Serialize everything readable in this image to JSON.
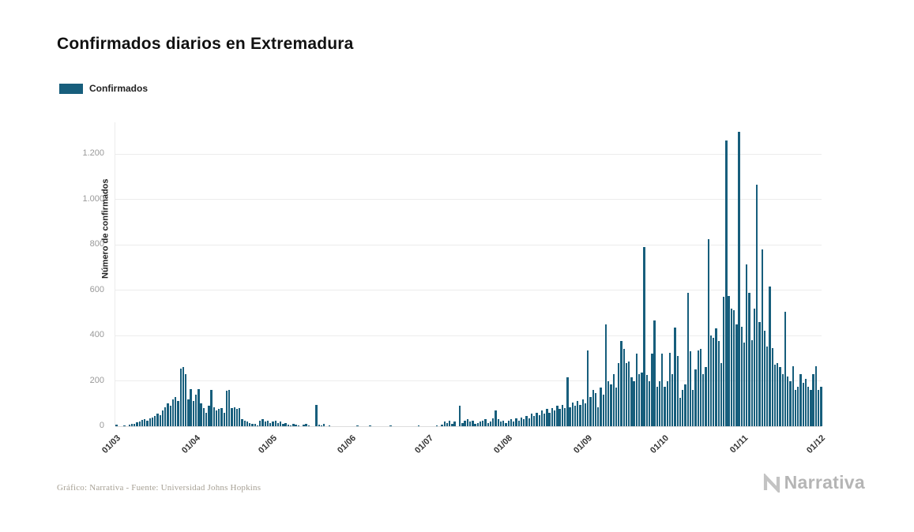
{
  "title": "Confirmados diarios en Extremadura",
  "legend": {
    "label": "Confirmados"
  },
  "footer": {
    "credit": "Gráfico: Narrativa - Fuente: Universidad Johns Hopkins",
    "brand": "Narrativa"
  },
  "colors": {
    "bar": "#175e7c",
    "grid": "#ececec",
    "ytick_text": "#999999",
    "xtick_text": "#333333",
    "brand_gray": "#b5b5b5"
  },
  "chart_data": {
    "type": "bar",
    "title": "Confirmados diarios en Extremadura",
    "series_name": "Confirmados",
    "xlabel": "",
    "ylabel": "Número de confirmados",
    "ylim": [
      0,
      1340
    ],
    "yticks": [
      0,
      200,
      400,
      600,
      800,
      1000,
      1200
    ],
    "ytick_labels": [
      "0",
      "200",
      "400",
      "600",
      "800",
      "1.000",
      "1.200"
    ],
    "grid": true,
    "legend_position": "top-left",
    "x_unit": "day",
    "x_range_note": "daily values from 01/03 to 01/12",
    "xtick_labels": [
      "01/03",
      "01/04",
      "01/05",
      "01/06",
      "01/07",
      "01/08",
      "01/09",
      "01/10",
      "01/11",
      "01/12"
    ],
    "xtick_indices": [
      0,
      31,
      61,
      92,
      122,
      153,
      184,
      214,
      245,
      275
    ],
    "values": [
      8,
      0,
      0,
      4,
      0,
      6,
      10,
      12,
      18,
      22,
      28,
      30,
      25,
      35,
      40,
      45,
      55,
      50,
      70,
      85,
      100,
      90,
      120,
      130,
      110,
      255,
      260,
      230,
      120,
      165,
      110,
      140,
      165,
      100,
      80,
      60,
      90,
      160,
      85,
      70,
      75,
      80,
      60,
      155,
      160,
      80,
      85,
      75,
      80,
      30,
      25,
      20,
      15,
      10,
      10,
      5,
      25,
      30,
      20,
      25,
      15,
      20,
      25,
      15,
      20,
      10,
      15,
      8,
      5,
      10,
      8,
      5,
      0,
      8,
      10,
      5,
      0,
      0,
      95,
      8,
      5,
      10,
      0,
      5,
      0,
      0,
      0,
      0,
      0,
      0,
      0,
      0,
      0,
      0,
      3,
      0,
      0,
      0,
      0,
      2,
      0,
      0,
      0,
      0,
      0,
      0,
      0,
      3,
      0,
      0,
      0,
      0,
      0,
      0,
      0,
      0,
      0,
      0,
      2,
      0,
      0,
      0,
      0,
      0,
      0,
      5,
      0,
      8,
      20,
      15,
      25,
      10,
      20,
      0,
      90,
      15,
      25,
      30,
      20,
      25,
      10,
      15,
      20,
      25,
      30,
      15,
      20,
      35,
      70,
      30,
      20,
      25,
      15,
      25,
      30,
      20,
      35,
      25,
      40,
      30,
      45,
      35,
      55,
      45,
      60,
      50,
      70,
      55,
      75,
      60,
      80,
      70,
      90,
      75,
      95,
      80,
      215,
      85,
      105,
      90,
      110,
      95,
      120,
      100,
      335,
      130,
      160,
      145,
      85,
      170,
      140,
      450,
      200,
      185,
      230,
      170,
      280,
      375,
      340,
      280,
      285,
      215,
      200,
      320,
      230,
      235,
      790,
      225,
      200,
      320,
      465,
      175,
      200,
      320,
      175,
      200,
      325,
      230,
      435,
      310,
      125,
      160,
      185,
      590,
      330,
      160,
      250,
      335,
      340,
      230,
      260,
      825,
      400,
      390,
      430,
      375,
      280,
      570,
      1260,
      575,
      520,
      510,
      450,
      1300,
      440,
      370,
      715,
      590,
      380,
      520,
      1065,
      460,
      780,
      420,
      350,
      615,
      345,
      270,
      280,
      260,
      230,
      505,
      220,
      200,
      265,
      160,
      175,
      230,
      190,
      210,
      175,
      160,
      230,
      265,
      160,
      175
    ]
  }
}
